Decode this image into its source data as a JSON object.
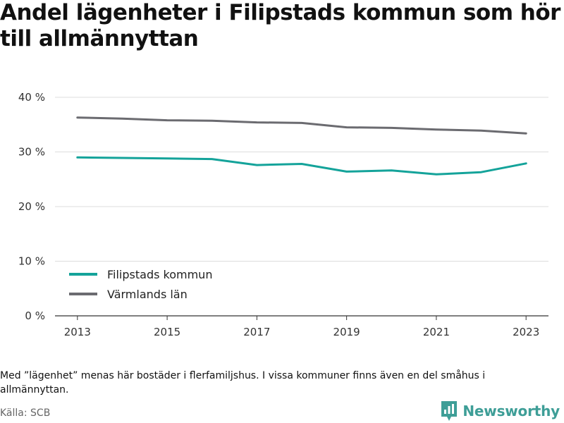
{
  "title": "Andel lägenheter i Filipstads kommun som hör till allmännyttan",
  "note": "Med ”lägenhet” menas här bostäder i flerfamiljshus. I vissa kommuner finns även en del småhus i allmännyttan.",
  "source": "Källa: SCB",
  "brand": "Newsworthy",
  "colors": {
    "filipstad": "#14a39a",
    "varmland": "#6b6b70",
    "grid": "#dddddd",
    "brand": "#3e9e97"
  },
  "chart_data": {
    "type": "line",
    "x": [
      2013,
      2014,
      2015,
      2016,
      2017,
      2018,
      2019,
      2020,
      2021,
      2022,
      2023
    ],
    "xticks": [
      {
        "value": 2013,
        "label": "2013"
      },
      {
        "value": 2015,
        "label": "2015"
      },
      {
        "value": 2017,
        "label": "2017"
      },
      {
        "value": 2019,
        "label": "2019"
      },
      {
        "value": 2021,
        "label": "2021"
      },
      {
        "value": 2023,
        "label": "2023"
      }
    ],
    "yticks": [
      {
        "value": 0,
        "label": "0 %"
      },
      {
        "value": 10,
        "label": "10 %"
      },
      {
        "value": 20,
        "label": "20 %"
      },
      {
        "value": 30,
        "label": "30 %"
      },
      {
        "value": 40,
        "label": "40 %"
      }
    ],
    "ylim": [
      0,
      40
    ],
    "series": [
      {
        "name": "Filipstads kommun",
        "color": "#14a39a",
        "values": [
          29.0,
          28.9,
          28.8,
          28.7,
          27.6,
          27.8,
          26.4,
          26.6,
          25.9,
          26.3,
          27.9
        ]
      },
      {
        "name": "Värmlands län",
        "color": "#6b6b70",
        "values": [
          36.3,
          36.1,
          35.8,
          35.7,
          35.4,
          35.3,
          34.5,
          34.4,
          34.1,
          33.9,
          33.4
        ]
      }
    ],
    "legend_position": "bottom-left",
    "grid": true
  }
}
